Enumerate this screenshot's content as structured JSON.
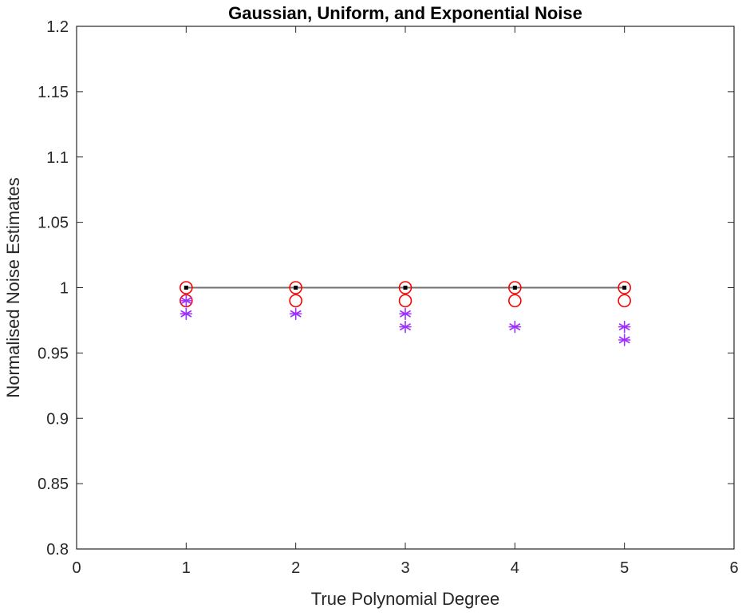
{
  "chart_data": {
    "type": "scatter",
    "title": "Gaussian, Uniform, and Exponential Noise",
    "xlabel": "True Polynomial Degree",
    "ylabel": "Normalised Noise Estimates",
    "xlim": [
      0,
      6
    ],
    "ylim": [
      0.8,
      1.2
    ],
    "xticks": [
      "0",
      "1",
      "2",
      "3",
      "4",
      "5",
      "6"
    ],
    "yticks": [
      "0.8",
      "0.85",
      "0.9",
      "0.95",
      "1",
      "1.05",
      "1.1",
      "1.15",
      "1.2"
    ],
    "grid": false,
    "legend": "none",
    "series": [
      {
        "marker": "line",
        "color": "#707070",
        "x": [
          1,
          5
        ],
        "y": [
          1.0,
          1.0
        ]
      },
      {
        "marker": "circle",
        "color": "#ff0000",
        "x": [
          1,
          1,
          2,
          2,
          3,
          3,
          4,
          4,
          5,
          5
        ],
        "y": [
          1.0,
          0.99,
          1.0,
          0.99,
          1.0,
          0.99,
          1.0,
          0.99,
          1.0,
          0.99
        ]
      },
      {
        "marker": "asterisk",
        "color": "#9b30ff",
        "x": [
          1,
          1,
          2,
          3,
          3,
          4,
          5,
          5
        ],
        "y": [
          0.99,
          0.98,
          0.98,
          0.98,
          0.97,
          0.97,
          0.97,
          0.96
        ]
      },
      {
        "marker": "dot",
        "color": "#000000",
        "x": [
          1,
          2,
          3,
          4,
          5
        ],
        "y": [
          1.0,
          1.0,
          1.0,
          1.0,
          1.0
        ]
      }
    ]
  }
}
